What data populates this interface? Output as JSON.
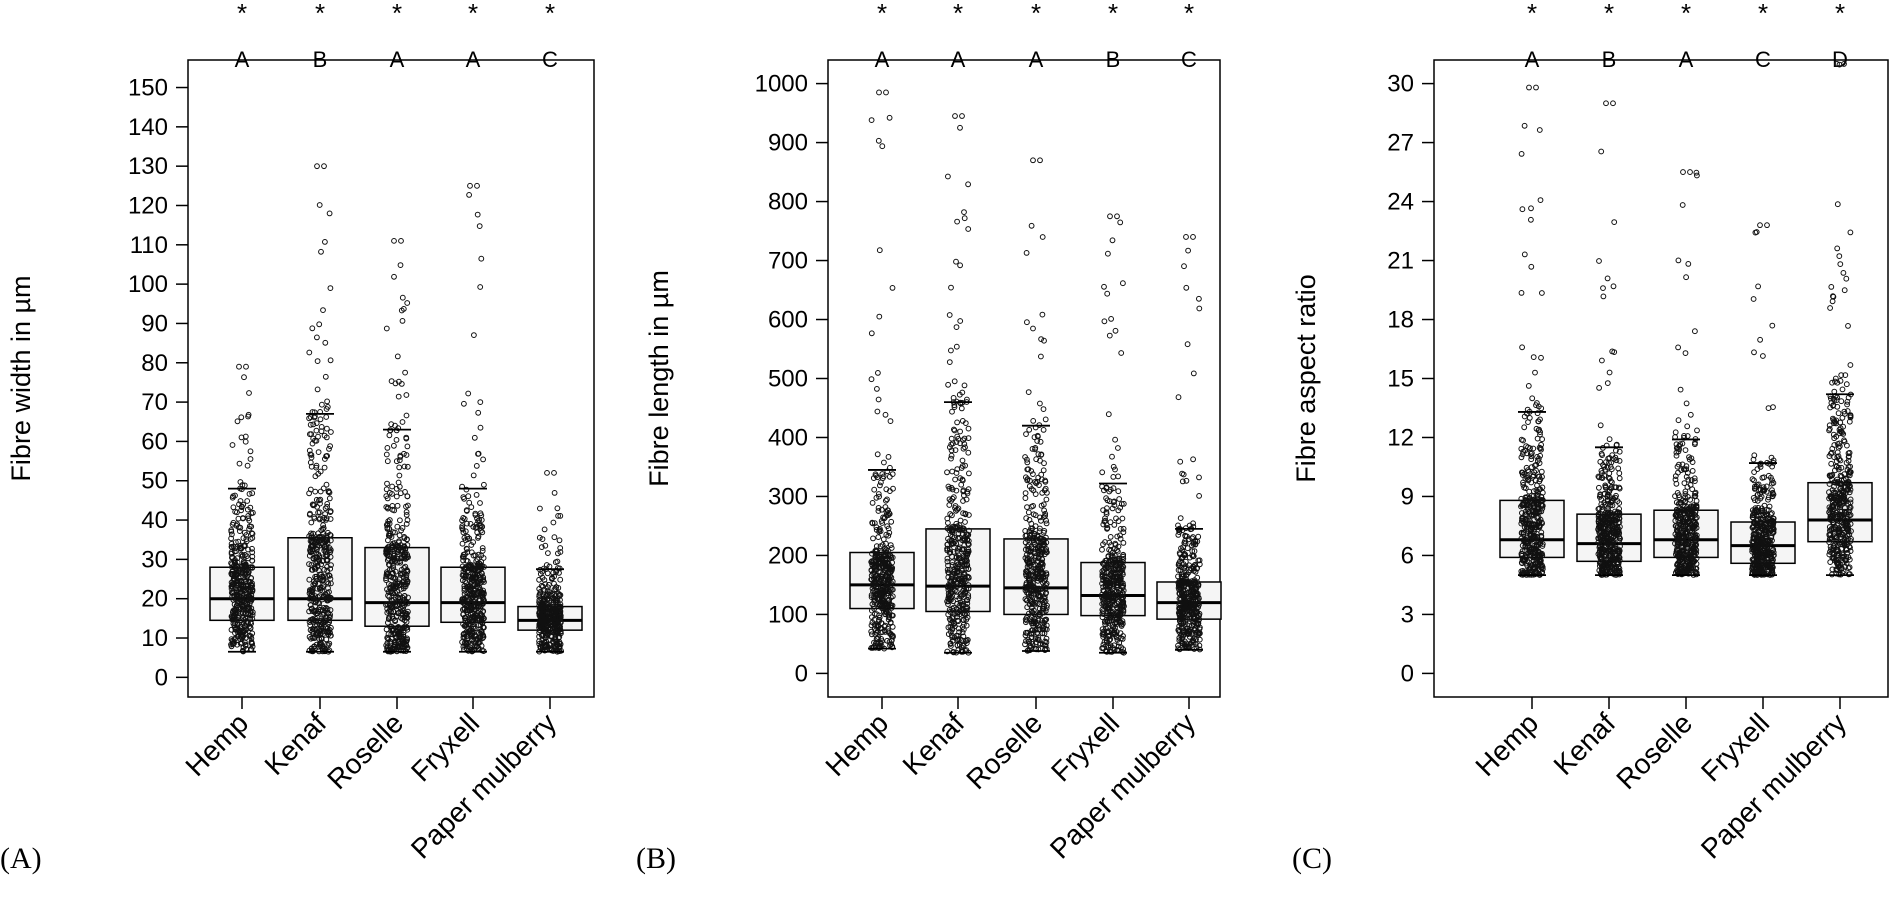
{
  "chart_data": [
    {
      "type": "box",
      "panel_label": "(A)",
      "ylabel": "Fibre width in µm",
      "xlabel": "",
      "ylim": [
        -5,
        157
      ],
      "yticks": [
        0,
        10,
        20,
        30,
        40,
        50,
        60,
        70,
        80,
        90,
        100,
        110,
        120,
        130,
        140,
        150
      ],
      "categories": [
        "Hemp",
        "Kenaf",
        "Roselle",
        "Fryxell",
        "Paper mulberry"
      ],
      "significance": [
        "*",
        "*",
        "*",
        "*",
        "*"
      ],
      "groups": [
        "A",
        "B",
        "A",
        "A",
        "C"
      ],
      "boxes": [
        {
          "q1": 14.5,
          "median": 20,
          "q3": 28,
          "whisker_low": 6.5,
          "whisker_high": 48,
          "max": 79
        },
        {
          "q1": 14.5,
          "median": 20,
          "q3": 35.5,
          "whisker_low": 6.5,
          "whisker_high": 67,
          "max": 130
        },
        {
          "q1": 13,
          "median": 19,
          "q3": 33,
          "whisker_low": 6.5,
          "whisker_high": 63,
          "max": 111
        },
        {
          "q1": 14,
          "median": 19,
          "q3": 28,
          "whisker_low": 6.5,
          "whisker_high": 48,
          "max": 125
        },
        {
          "q1": 12,
          "median": 14.5,
          "q3": 18,
          "whisker_low": 6.5,
          "whisker_high": 27.5,
          "max": 52
        }
      ]
    },
    {
      "type": "box",
      "panel_label": "(B)",
      "ylabel": "Fibre length in µm",
      "xlabel": "",
      "ylim": [
        -40,
        1040
      ],
      "yticks": [
        0,
        100,
        200,
        300,
        400,
        500,
        600,
        700,
        800,
        900,
        1000
      ],
      "categories": [
        "Hemp",
        "Kenaf",
        "Roselle",
        "Fryxell",
        "Paper mulberry"
      ],
      "significance": [
        "*",
        "*",
        "*",
        "*",
        "*"
      ],
      "groups": [
        "A",
        "A",
        "A",
        "B",
        "C"
      ],
      "boxes": [
        {
          "q1": 110,
          "median": 150,
          "q3": 205,
          "whisker_low": 42,
          "whisker_high": 345,
          "max": 985
        },
        {
          "q1": 105,
          "median": 148,
          "q3": 245,
          "whisker_low": 35,
          "whisker_high": 460,
          "max": 945
        },
        {
          "q1": 100,
          "median": 145,
          "q3": 228,
          "whisker_low": 38,
          "whisker_high": 420,
          "max": 870
        },
        {
          "q1": 98,
          "median": 132,
          "q3": 188,
          "whisker_low": 35,
          "whisker_high": 322,
          "max": 775
        },
        {
          "q1": 92,
          "median": 120,
          "q3": 155,
          "whisker_low": 40,
          "whisker_high": 245,
          "max": 740
        }
      ]
    },
    {
      "type": "box",
      "panel_label": "(C)",
      "ylabel": "Fibre aspect ratio",
      "xlabel": "",
      "ylim": [
        -1.2,
        31.2
      ],
      "yticks": [
        0,
        3,
        6,
        9,
        12,
        15,
        18,
        21,
        24,
        27,
        30
      ],
      "categories": [
        "Hemp",
        "Kenaf",
        "Roselle",
        "Fryxell",
        "Paper mulberry"
      ],
      "significance": [
        "*",
        "*",
        "*",
        "*",
        "*"
      ],
      "groups": [
        "A",
        "B",
        "A",
        "C",
        "D"
      ],
      "boxes": [
        {
          "q1": 5.9,
          "median": 6.8,
          "q3": 8.8,
          "whisker_low": 5.0,
          "whisker_high": 13.3,
          "max": 29.8
        },
        {
          "q1": 5.7,
          "median": 6.6,
          "q3": 8.1,
          "whisker_low": 5.0,
          "whisker_high": 11.5,
          "max": 29.0
        },
        {
          "q1": 5.9,
          "median": 6.8,
          "q3": 8.3,
          "whisker_low": 5.0,
          "whisker_high": 11.9,
          "max": 25.5
        },
        {
          "q1": 5.6,
          "median": 6.5,
          "q3": 7.7,
          "whisker_low": 5.0,
          "whisker_high": 10.7,
          "max": 22.8
        },
        {
          "q1": 6.7,
          "median": 7.8,
          "q3": 9.7,
          "whisker_low": 5.0,
          "whisker_high": 14.2,
          "max": 31.0
        }
      ]
    }
  ]
}
